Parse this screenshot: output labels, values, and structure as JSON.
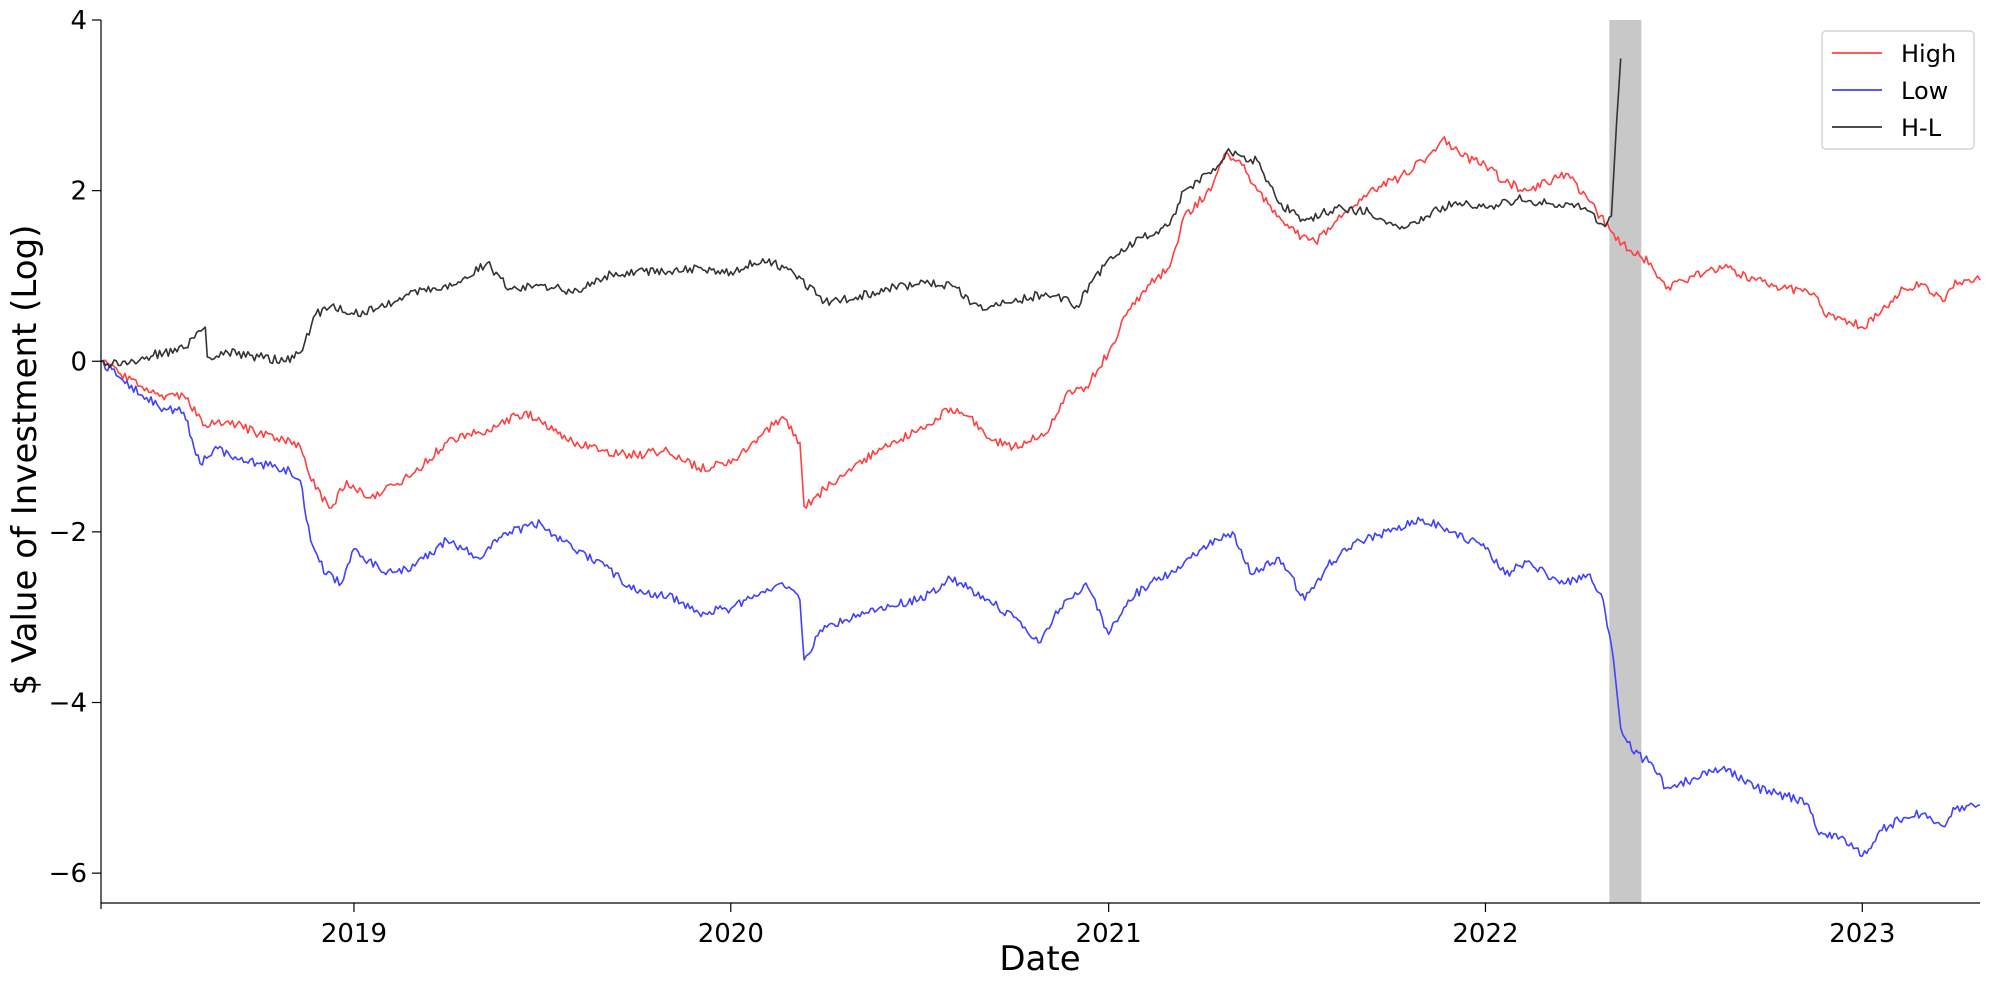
{
  "chart_data": {
    "type": "line",
    "title": "",
    "xlabel": "Date",
    "ylabel": "$ Value of Investment (Log)",
    "xlim": [
      "2018-05-01",
      "2023-04-25"
    ],
    "ylim": [
      -6.35,
      4.0
    ],
    "x_ticks": [
      {
        "date": "2019-01-01",
        "label": "2019"
      },
      {
        "date": "2020-01-01",
        "label": "2020"
      },
      {
        "date": "2021-01-01",
        "label": "2021"
      },
      {
        "date": "2022-01-01",
        "label": "2022"
      },
      {
        "date": "2023-01-01",
        "label": "2023"
      }
    ],
    "y_ticks": [
      {
        "value": 4,
        "label": "4"
      },
      {
        "value": 2,
        "label": "2"
      },
      {
        "value": 0,
        "label": "0"
      },
      {
        "value": -2,
        "label": "−2"
      },
      {
        "value": -4,
        "label": "−4"
      },
      {
        "value": -6,
        "label": "−6"
      }
    ],
    "grid": false,
    "legend_position": "top-right",
    "shaded_regions": [
      {
        "start": "2022-05-01",
        "end": "2022-06-01",
        "color": "#c8c8c8"
      }
    ],
    "series": [
      {
        "name": "High",
        "color": "#ff4040",
        "points": [
          [
            "2018-05-01",
            0.0
          ],
          [
            "2018-05-20",
            -0.15
          ],
          [
            "2018-06-10",
            -0.3
          ],
          [
            "2018-07-01",
            -0.45
          ],
          [
            "2018-07-20",
            -0.4
          ],
          [
            "2018-08-10",
            -0.75
          ],
          [
            "2018-09-01",
            -0.7
          ],
          [
            "2018-10-01",
            -0.85
          ],
          [
            "2018-10-25",
            -0.92
          ],
          [
            "2018-11-10",
            -1.0
          ],
          [
            "2018-11-25",
            -1.5
          ],
          [
            "2018-12-10",
            -1.72
          ],
          [
            "2018-12-25",
            -1.4
          ],
          [
            "2019-01-15",
            -1.6
          ],
          [
            "2019-02-10",
            -1.45
          ],
          [
            "2019-03-01",
            -1.3
          ],
          [
            "2019-04-01",
            -0.95
          ],
          [
            "2019-05-10",
            -0.8
          ],
          [
            "2019-06-15",
            -0.6
          ],
          [
            "2019-07-01",
            -0.7
          ],
          [
            "2019-08-01",
            -0.95
          ],
          [
            "2019-09-01",
            -1.05
          ],
          [
            "2019-10-01",
            -1.1
          ],
          [
            "2019-11-01",
            -1.05
          ],
          [
            "2019-12-01",
            -1.25
          ],
          [
            "2020-01-01",
            -1.2
          ],
          [
            "2020-02-01",
            -0.85
          ],
          [
            "2020-02-20",
            -0.65
          ],
          [
            "2020-03-08",
            -0.95
          ],
          [
            "2020-03-12",
            -1.7
          ],
          [
            "2020-04-01",
            -1.5
          ],
          [
            "2020-05-01",
            -1.2
          ],
          [
            "2020-06-01",
            -1.0
          ],
          [
            "2020-07-01",
            -0.8
          ],
          [
            "2020-08-01",
            -0.55
          ],
          [
            "2020-08-20",
            -0.65
          ],
          [
            "2020-09-05",
            -0.9
          ],
          [
            "2020-10-01",
            -1.0
          ],
          [
            "2020-11-01",
            -0.85
          ],
          [
            "2020-11-20",
            -0.4
          ],
          [
            "2020-12-10",
            -0.3
          ],
          [
            "2021-01-01",
            0.1
          ],
          [
            "2021-01-20",
            0.6
          ],
          [
            "2021-02-10",
            0.9
          ],
          [
            "2021-03-01",
            1.1
          ],
          [
            "2021-03-15",
            1.7
          ],
          [
            "2021-04-10",
            2.0
          ],
          [
            "2021-04-25",
            2.45
          ],
          [
            "2021-05-10",
            2.3
          ],
          [
            "2021-05-25",
            2.0
          ],
          [
            "2021-06-15",
            1.7
          ],
          [
            "2021-07-01",
            1.5
          ],
          [
            "2021-07-20",
            1.4
          ],
          [
            "2021-08-10",
            1.65
          ],
          [
            "2021-09-01",
            1.9
          ],
          [
            "2021-09-20",
            2.05
          ],
          [
            "2021-10-10",
            2.15
          ],
          [
            "2021-11-01",
            2.35
          ],
          [
            "2021-11-20",
            2.6
          ],
          [
            "2021-12-10",
            2.4
          ],
          [
            "2022-01-01",
            2.3
          ],
          [
            "2022-01-20",
            2.1
          ],
          [
            "2022-02-10",
            2.0
          ],
          [
            "2022-03-01",
            2.1
          ],
          [
            "2022-03-20",
            2.2
          ],
          [
            "2022-04-10",
            1.9
          ],
          [
            "2022-05-01",
            1.55
          ],
          [
            "2022-05-20",
            1.3
          ],
          [
            "2022-06-10",
            1.15
          ],
          [
            "2022-06-25",
            0.85
          ],
          [
            "2022-07-20",
            1.0
          ],
          [
            "2022-08-20",
            1.1
          ],
          [
            "2022-09-20",
            0.95
          ],
          [
            "2022-10-20",
            0.85
          ],
          [
            "2022-11-15",
            0.8
          ],
          [
            "2022-11-25",
            0.55
          ],
          [
            "2022-12-15",
            0.5
          ],
          [
            "2023-01-01",
            0.4
          ],
          [
            "2023-01-20",
            0.6
          ],
          [
            "2023-02-10",
            0.85
          ],
          [
            "2023-03-01",
            0.9
          ],
          [
            "2023-03-20",
            0.7
          ],
          [
            "2023-04-01",
            0.95
          ],
          [
            "2023-04-25",
            0.95
          ]
        ]
      },
      {
        "name": "Low",
        "color": "#4040ff",
        "points": [
          [
            "2018-05-01",
            0.0
          ],
          [
            "2018-05-20",
            -0.2
          ],
          [
            "2018-06-10",
            -0.4
          ],
          [
            "2018-07-01",
            -0.55
          ],
          [
            "2018-07-20",
            -0.6
          ],
          [
            "2018-08-05",
            -1.2
          ],
          [
            "2018-08-20",
            -1.0
          ],
          [
            "2018-09-10",
            -1.15
          ],
          [
            "2018-10-01",
            -1.2
          ],
          [
            "2018-10-25",
            -1.25
          ],
          [
            "2018-11-10",
            -1.4
          ],
          [
            "2018-11-20",
            -2.1
          ],
          [
            "2018-12-05",
            -2.5
          ],
          [
            "2018-12-20",
            -2.6
          ],
          [
            "2019-01-01",
            -2.2
          ],
          [
            "2019-02-01",
            -2.5
          ],
          [
            "2019-03-01",
            -2.4
          ],
          [
            "2019-04-01",
            -2.1
          ],
          [
            "2019-05-01",
            -2.3
          ],
          [
            "2019-06-01",
            -2.0
          ],
          [
            "2019-07-01",
            -1.9
          ],
          [
            "2019-08-01",
            -2.2
          ],
          [
            "2019-09-01",
            -2.4
          ],
          [
            "2019-10-01",
            -2.7
          ],
          [
            "2019-11-01",
            -2.75
          ],
          [
            "2019-12-01",
            -2.95
          ],
          [
            "2020-01-01",
            -2.9
          ],
          [
            "2020-02-01",
            -2.7
          ],
          [
            "2020-02-20",
            -2.6
          ],
          [
            "2020-03-08",
            -2.8
          ],
          [
            "2020-03-12",
            -3.5
          ],
          [
            "2020-04-01",
            -3.1
          ],
          [
            "2020-05-01",
            -3.0
          ],
          [
            "2020-06-01",
            -2.85
          ],
          [
            "2020-07-01",
            -2.8
          ],
          [
            "2020-08-01",
            -2.55
          ],
          [
            "2020-09-01",
            -2.75
          ],
          [
            "2020-10-01",
            -3.0
          ],
          [
            "2020-10-25",
            -3.3
          ],
          [
            "2020-11-15",
            -2.9
          ],
          [
            "2020-12-10",
            -2.6
          ],
          [
            "2021-01-01",
            -3.2
          ],
          [
            "2021-01-20",
            -2.8
          ],
          [
            "2021-02-10",
            -2.6
          ],
          [
            "2021-03-01",
            -2.5
          ],
          [
            "2021-04-01",
            -2.2
          ],
          [
            "2021-05-01",
            -2.0
          ],
          [
            "2021-05-20",
            -2.5
          ],
          [
            "2021-06-15",
            -2.3
          ],
          [
            "2021-07-10",
            -2.8
          ],
          [
            "2021-08-01",
            -2.4
          ],
          [
            "2021-09-01",
            -2.1
          ],
          [
            "2021-10-01",
            -2.0
          ],
          [
            "2021-11-01",
            -1.85
          ],
          [
            "2021-12-01",
            -2.0
          ],
          [
            "2022-01-01",
            -2.2
          ],
          [
            "2022-01-20",
            -2.5
          ],
          [
            "2022-02-10",
            -2.35
          ],
          [
            "2022-03-01",
            -2.5
          ],
          [
            "2022-03-20",
            -2.6
          ],
          [
            "2022-04-10",
            -2.5
          ],
          [
            "2022-04-25",
            -2.8
          ],
          [
            "2022-05-05",
            -3.5
          ],
          [
            "2022-05-12",
            -4.3
          ],
          [
            "2022-05-25",
            -4.6
          ],
          [
            "2022-06-10",
            -4.7
          ],
          [
            "2022-06-25",
            -5.0
          ],
          [
            "2022-07-20",
            -4.9
          ],
          [
            "2022-08-20",
            -4.75
          ],
          [
            "2022-09-20",
            -5.0
          ],
          [
            "2022-10-20",
            -5.1
          ],
          [
            "2022-11-10",
            -5.2
          ],
          [
            "2022-11-20",
            -5.55
          ],
          [
            "2022-12-15",
            -5.6
          ],
          [
            "2023-01-01",
            -5.8
          ],
          [
            "2023-01-20",
            -5.5
          ],
          [
            "2023-02-10",
            -5.35
          ],
          [
            "2023-03-01",
            -5.3
          ],
          [
            "2023-03-20",
            -5.45
          ],
          [
            "2023-04-01",
            -5.25
          ],
          [
            "2023-04-25",
            -5.2
          ]
        ]
      },
      {
        "name": "H-L",
        "color": "#333333",
        "points": [
          [
            "2018-05-01",
            0.0
          ],
          [
            "2018-05-20",
            -0.05
          ],
          [
            "2018-06-10",
            0.05
          ],
          [
            "2018-07-01",
            0.1
          ],
          [
            "2018-07-20",
            0.15
          ],
          [
            "2018-08-10",
            0.4
          ],
          [
            "2018-08-12",
            0.05
          ],
          [
            "2018-09-01",
            0.1
          ],
          [
            "2018-10-01",
            0.05
          ],
          [
            "2018-10-25",
            0.0
          ],
          [
            "2018-11-10",
            0.1
          ],
          [
            "2018-11-25",
            0.55
          ],
          [
            "2018-12-10",
            0.65
          ],
          [
            "2019-01-01",
            0.55
          ],
          [
            "2019-02-10",
            0.7
          ],
          [
            "2019-03-10",
            0.85
          ],
          [
            "2019-04-10",
            0.9
          ],
          [
            "2019-05-10",
            1.15
          ],
          [
            "2019-06-01",
            0.85
          ],
          [
            "2019-07-01",
            0.9
          ],
          [
            "2019-08-01",
            0.8
          ],
          [
            "2019-09-01",
            1.0
          ],
          [
            "2019-10-01",
            1.05
          ],
          [
            "2019-11-01",
            1.05
          ],
          [
            "2019-12-01",
            1.1
          ],
          [
            "2020-01-01",
            1.05
          ],
          [
            "2020-02-01",
            1.2
          ],
          [
            "2020-03-01",
            1.05
          ],
          [
            "2020-04-01",
            0.7
          ],
          [
            "2020-05-01",
            0.75
          ],
          [
            "2020-06-01",
            0.85
          ],
          [
            "2020-07-01",
            0.9
          ],
          [
            "2020-08-01",
            0.9
          ],
          [
            "2020-09-01",
            0.6
          ],
          [
            "2020-10-01",
            0.7
          ],
          [
            "2020-11-01",
            0.8
          ],
          [
            "2020-12-01",
            0.65
          ],
          [
            "2021-01-01",
            1.2
          ],
          [
            "2021-02-01",
            1.45
          ],
          [
            "2021-03-01",
            1.6
          ],
          [
            "2021-03-15",
            2.0
          ],
          [
            "2021-04-10",
            2.2
          ],
          [
            "2021-04-25",
            2.45
          ],
          [
            "2021-05-10",
            2.4
          ],
          [
            "2021-05-25",
            2.35
          ],
          [
            "2021-06-15",
            1.85
          ],
          [
            "2021-07-10",
            1.65
          ],
          [
            "2021-08-10",
            1.8
          ],
          [
            "2021-09-10",
            1.75
          ],
          [
            "2021-10-10",
            1.55
          ],
          [
            "2021-11-10",
            1.75
          ],
          [
            "2021-12-01",
            1.85
          ],
          [
            "2022-01-01",
            1.8
          ],
          [
            "2022-02-01",
            1.9
          ],
          [
            "2022-03-01",
            1.85
          ],
          [
            "2022-04-01",
            1.85
          ],
          [
            "2022-04-25",
            1.6
          ],
          [
            "2022-05-03",
            1.7
          ],
          [
            "2022-05-08",
            2.8
          ],
          [
            "2022-05-12",
            3.55
          ]
        ]
      }
    ]
  }
}
